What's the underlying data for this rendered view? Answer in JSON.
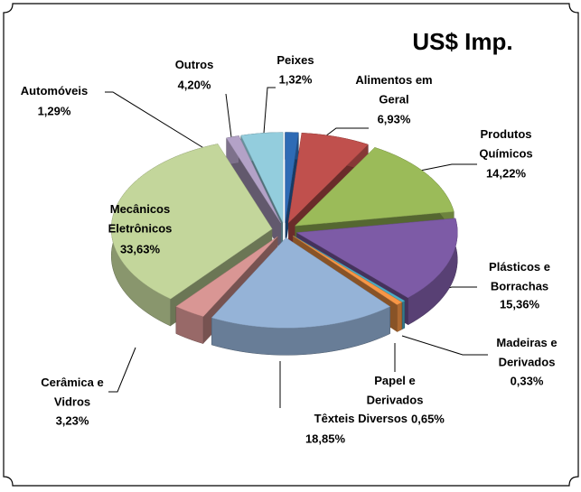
{
  "chart_data": {
    "type": "pie3d",
    "title": "US$ Imp.",
    "categories": [
      "Peixes",
      "Alimentos em Geral",
      "Produtos Químicos",
      "Plásticos e Borrachas",
      "Madeiras e Derivados",
      "Papel e Derivados",
      "Têxteis Diversos",
      "Cerâmica e Vidros",
      "Mecânicos Eletrônicos",
      "Automóveis",
      "Outros"
    ],
    "values": [
      1.32,
      6.93,
      14.22,
      15.36,
      0.33,
      0.65,
      18.85,
      3.23,
      33.63,
      1.29,
      4.2
    ],
    "value_labels": [
      "1,32%",
      "6,93%",
      "14,22%",
      "15,36%",
      "0,33%",
      "0,65%",
      "18,85%",
      "3,23%",
      "33,63%",
      "1,29%",
      "4,20%"
    ],
    "colors": [
      "#2e6bb5",
      "#c0504d",
      "#9bbb59",
      "#7d5ba6",
      "#4bacc6",
      "#f79646",
      "#95b3d7",
      "#d99694",
      "#c3d69b",
      "#b3a2c7",
      "#93cddd"
    ]
  }
}
